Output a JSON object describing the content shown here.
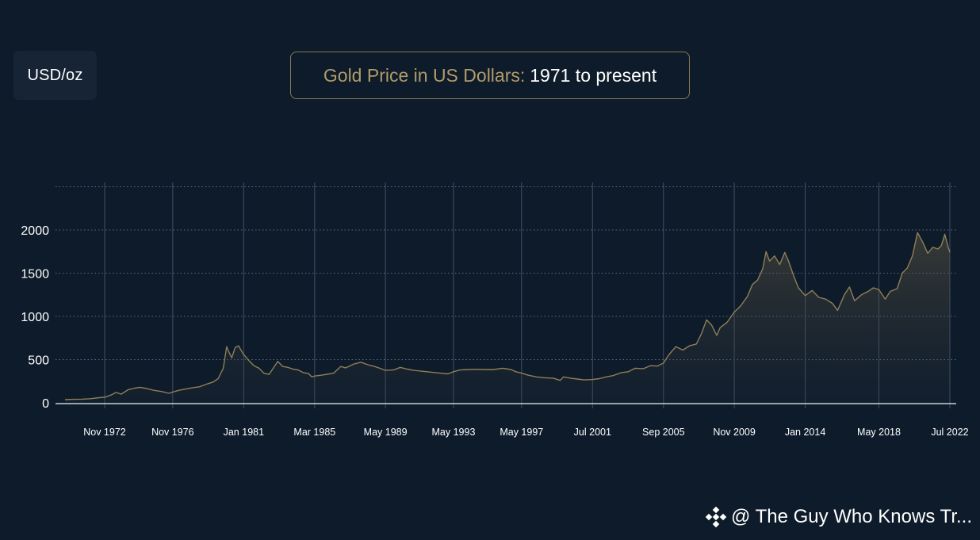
{
  "unit_label": "USD/oz",
  "title": {
    "gold_part": "Gold Price in US Dollars:",
    "white_part": "1971 to present"
  },
  "watermark": {
    "icon": "binance-logo-icon",
    "text": "@ The Guy Who Knows Tr..."
  },
  "colors": {
    "background": "#0e1b2a",
    "line": "#8f7f57",
    "accent_gold": "#b19b6a"
  },
  "chart_data": {
    "type": "area",
    "title": "Gold Price in US Dollars: 1971 to present",
    "xlabel": "",
    "ylabel": "USD/oz",
    "ylim": [
      0,
      2500
    ],
    "xlim": [
      1970.5,
      2022.5
    ],
    "y_ticks": [
      0,
      500,
      1000,
      1500,
      2000
    ],
    "x_ticks": [
      {
        "label": "Nov 1972",
        "x": 1972.83
      },
      {
        "label": "Nov 1976",
        "x": 1976.83
      },
      {
        "label": "Jan 1981",
        "x": 1981.0
      },
      {
        "label": "Mar 1985",
        "x": 1985.17
      },
      {
        "label": "May 1989",
        "x": 1989.33
      },
      {
        "label": "May 1993",
        "x": 1993.33
      },
      {
        "label": "May 1997",
        "x": 1997.33
      },
      {
        "label": "Jul 2001",
        "x": 2001.5
      },
      {
        "label": "Sep 2005",
        "x": 2005.67
      },
      {
        "label": "Nov 2009",
        "x": 2009.83
      },
      {
        "label": "Jan 2014",
        "x": 2014.0
      },
      {
        "label": "May 2018",
        "x": 2018.33
      },
      {
        "label": "Jul 2022",
        "x": 2022.5
      }
    ],
    "grid": true,
    "series": [
      {
        "points": [
          [
            1970.5,
            37
          ],
          [
            1971.0,
            40
          ],
          [
            1971.5,
            42
          ],
          [
            1972.0,
            48
          ],
          [
            1972.5,
            60
          ],
          [
            1972.83,
            64
          ],
          [
            1973.2,
            90
          ],
          [
            1973.5,
            120
          ],
          [
            1973.8,
            100
          ],
          [
            1974.2,
            150
          ],
          [
            1974.6,
            170
          ],
          [
            1974.9,
            180
          ],
          [
            1975.3,
            165
          ],
          [
            1975.7,
            145
          ],
          [
            1976.2,
            130
          ],
          [
            1976.6,
            110
          ],
          [
            1976.83,
            125
          ],
          [
            1977.2,
            145
          ],
          [
            1977.6,
            160
          ],
          [
            1978.0,
            175
          ],
          [
            1978.4,
            185
          ],
          [
            1978.8,
            215
          ],
          [
            1979.2,
            240
          ],
          [
            1979.5,
            280
          ],
          [
            1979.8,
            400
          ],
          [
            1980.0,
            650
          ],
          [
            1980.1,
            600
          ],
          [
            1980.3,
            520
          ],
          [
            1980.5,
            640
          ],
          [
            1980.7,
            660
          ],
          [
            1980.9,
            590
          ],
          [
            1981.0,
            560
          ],
          [
            1981.3,
            490
          ],
          [
            1981.6,
            430
          ],
          [
            1981.9,
            400
          ],
          [
            1982.2,
            340
          ],
          [
            1982.5,
            330
          ],
          [
            1982.8,
            420
          ],
          [
            1983.0,
            480
          ],
          [
            1983.3,
            420
          ],
          [
            1983.6,
            410
          ],
          [
            1983.9,
            390
          ],
          [
            1984.2,
            380
          ],
          [
            1984.5,
            350
          ],
          [
            1984.8,
            340
          ],
          [
            1985.0,
            300
          ],
          [
            1985.17,
            310
          ],
          [
            1985.6,
            320
          ],
          [
            1985.9,
            330
          ],
          [
            1986.3,
            345
          ],
          [
            1986.7,
            420
          ],
          [
            1987.0,
            405
          ],
          [
            1987.5,
            450
          ],
          [
            1987.9,
            470
          ],
          [
            1988.3,
            440
          ],
          [
            1988.7,
            420
          ],
          [
            1989.0,
            400
          ],
          [
            1989.33,
            375
          ],
          [
            1989.8,
            380
          ],
          [
            1990.2,
            410
          ],
          [
            1990.6,
            390
          ],
          [
            1991.0,
            375
          ],
          [
            1991.5,
            365
          ],
          [
            1992.0,
            355
          ],
          [
            1992.5,
            345
          ],
          [
            1993.0,
            335
          ],
          [
            1993.33,
            360
          ],
          [
            1993.7,
            380
          ],
          [
            1994.2,
            385
          ],
          [
            1994.7,
            388
          ],
          [
            1995.2,
            385
          ],
          [
            1995.7,
            385
          ],
          [
            1996.2,
            400
          ],
          [
            1996.7,
            385
          ],
          [
            1997.0,
            360
          ],
          [
            1997.33,
            345
          ],
          [
            1997.7,
            320
          ],
          [
            1998.2,
            300
          ],
          [
            1998.7,
            290
          ],
          [
            1999.2,
            285
          ],
          [
            1999.6,
            260
          ],
          [
            1999.8,
            300
          ],
          [
            2000.2,
            285
          ],
          [
            2000.6,
            275
          ],
          [
            2001.0,
            265
          ],
          [
            2001.5,
            270
          ],
          [
            2001.9,
            280
          ],
          [
            2002.3,
            300
          ],
          [
            2002.7,
            315
          ],
          [
            2003.2,
            350
          ],
          [
            2003.6,
            360
          ],
          [
            2004.0,
            400
          ],
          [
            2004.5,
            395
          ],
          [
            2004.9,
            430
          ],
          [
            2005.3,
            425
          ],
          [
            2005.67,
            460
          ],
          [
            2006.0,
            560
          ],
          [
            2006.4,
            650
          ],
          [
            2006.8,
            610
          ],
          [
            2007.2,
            660
          ],
          [
            2007.6,
            680
          ],
          [
            2007.9,
            800
          ],
          [
            2008.2,
            960
          ],
          [
            2008.5,
            900
          ],
          [
            2008.8,
            780
          ],
          [
            2009.0,
            870
          ],
          [
            2009.4,
            930
          ],
          [
            2009.83,
            1050
          ],
          [
            2010.2,
            1120
          ],
          [
            2010.6,
            1230
          ],
          [
            2010.9,
            1370
          ],
          [
            2011.2,
            1420
          ],
          [
            2011.5,
            1550
          ],
          [
            2011.7,
            1750
          ],
          [
            2011.9,
            1640
          ],
          [
            2012.2,
            1700
          ],
          [
            2012.5,
            1600
          ],
          [
            2012.8,
            1740
          ],
          [
            2013.0,
            1650
          ],
          [
            2013.3,
            1480
          ],
          [
            2013.6,
            1330
          ],
          [
            2014.0,
            1240
          ],
          [
            2014.4,
            1300
          ],
          [
            2014.8,
            1220
          ],
          [
            2015.2,
            1200
          ],
          [
            2015.6,
            1150
          ],
          [
            2015.9,
            1070
          ],
          [
            2016.3,
            1250
          ],
          [
            2016.6,
            1340
          ],
          [
            2016.9,
            1180
          ],
          [
            2017.3,
            1250
          ],
          [
            2017.7,
            1290
          ],
          [
            2018.0,
            1330
          ],
          [
            2018.33,
            1310
          ],
          [
            2018.7,
            1200
          ],
          [
            2019.0,
            1290
          ],
          [
            2019.4,
            1320
          ],
          [
            2019.7,
            1500
          ],
          [
            2020.0,
            1560
          ],
          [
            2020.3,
            1700
          ],
          [
            2020.6,
            1970
          ],
          [
            2020.9,
            1860
          ],
          [
            2021.2,
            1730
          ],
          [
            2021.5,
            1800
          ],
          [
            2021.8,
            1780
          ],
          [
            2022.0,
            1820
          ],
          [
            2022.2,
            1950
          ],
          [
            2022.4,
            1800
          ],
          [
            2022.5,
            1740
          ]
        ]
      }
    ]
  }
}
